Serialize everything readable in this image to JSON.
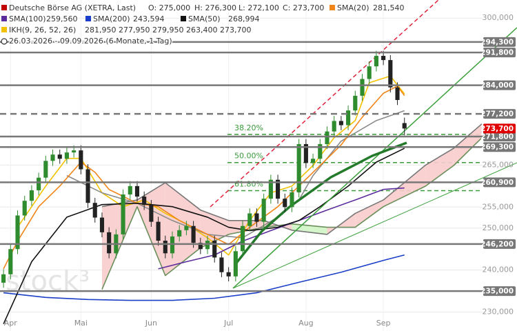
{
  "chart_data": {
    "type": "candlestick",
    "watermark": "stock³",
    "header": {
      "title": "Deutsche Börse AG (XETRA, Last)",
      "color": "#c00000",
      "ohlc": [
        "O: 275,000",
        "H: 276,300",
        "L: 272,100",
        "C: 273,700"
      ],
      "period": "26.03.2026 - 09.09.2026 (6 Monate, 1 Tag)"
    },
    "categories": [
      null,
      "Apr",
      null,
      null,
      null,
      null,
      null,
      null,
      null,
      null,
      null,
      "Mai",
      null,
      null,
      null,
      null,
      null,
      null,
      null,
      null,
      null,
      "Jun",
      null,
      null,
      null,
      null,
      null,
      null,
      null,
      null,
      null,
      null,
      "Jul",
      null,
      null,
      null,
      null,
      null,
      null,
      null,
      null,
      null,
      null,
      "Aug",
      null,
      null,
      null,
      null,
      null,
      null,
      null,
      null,
      null,
      null,
      "Sep",
      null,
      null,
      null
    ],
    "xlim": [
      -0.5,
      68.1
    ],
    "ylim": [
      225500,
      304300
    ],
    "yticks": [
      {
        "value": 300000,
        "label": "300,000"
      },
      {
        "value": 265000,
        "label": "265,000"
      },
      {
        "value": 255000,
        "label": "255,000"
      },
      {
        "value": 250000,
        "label": "250,000"
      },
      {
        "value": 240000,
        "label": "240,000"
      },
      {
        "value": 230000,
        "label": "230,000"
      }
    ],
    "grid": true,
    "up_color": "#2e8b2e",
    "down_color": "#222222",
    "open": [
      237000,
      239000,
      245000,
      253000,
      256500,
      259000,
      262000,
      266000,
      267500,
      266500,
      268000,
      268500,
      264000,
      256000,
      252500,
      249000,
      244000,
      248500,
      258000,
      260000,
      257500,
      255500,
      251500,
      247000,
      244000,
      248000,
      249500,
      250500,
      246500,
      245000,
      247000,
      243000,
      239500,
      238500,
      244500,
      250500,
      253500,
      251500,
      257000,
      261500,
      257000,
      255000,
      258500,
      270000,
      265500,
      266500,
      270000,
      273000,
      275500,
      274500,
      278000,
      281500,
      285500,
      288500,
      291000,
      290000,
      283500,
      275000
    ],
    "high": [
      240200,
      246200,
      254200,
      257700,
      260200,
      263200,
      267200,
      268700,
      268700,
      269200,
      269700,
      269700,
      265200,
      257200,
      253700,
      250200,
      249700,
      259200,
      261200,
      261200,
      258700,
      256700,
      252700,
      248200,
      249200,
      250700,
      251700,
      251700,
      247700,
      248200,
      248200,
      244200,
      240700,
      245700,
      251700,
      254700,
      254700,
      258200,
      262700,
      262700,
      258200,
      259700,
      271200,
      271200,
      267700,
      271200,
      274200,
      276700,
      276700,
      279200,
      282700,
      286700,
      289700,
      292200,
      292200,
      291200,
      284700,
      276300
    ],
    "low": [
      235800,
      237800,
      243800,
      251800,
      255300,
      257800,
      260800,
      264800,
      265300,
      265300,
      266800,
      262800,
      254800,
      251300,
      247800,
      242800,
      242800,
      247300,
      256800,
      256300,
      254300,
      250300,
      245800,
      242800,
      242800,
      246800,
      248300,
      245300,
      243800,
      243800,
      241800,
      238300,
      237300,
      237300,
      243300,
      249300,
      250300,
      250300,
      255800,
      255800,
      253800,
      253800,
      257300,
      264300,
      264300,
      265300,
      268800,
      271800,
      273300,
      273300,
      276800,
      280300,
      284300,
      287300,
      288800,
      282300,
      279300,
      272100
    ],
    "close": [
      239000,
      245000,
      253000,
      256500,
      259000,
      262000,
      266000,
      267500,
      266500,
      268000,
      268500,
      264000,
      256000,
      252500,
      249000,
      244000,
      248500,
      258000,
      260000,
      257500,
      255500,
      251500,
      247000,
      244000,
      248000,
      249500,
      250500,
      246500,
      245000,
      247000,
      243000,
      239500,
      238500,
      244500,
      250500,
      253500,
      251500,
      257000,
      261500,
      257000,
      255000,
      258500,
      270000,
      265500,
      266500,
      270000,
      273000,
      275500,
      274500,
      278000,
      281500,
      285500,
      288500,
      291000,
      290000,
      283500,
      280500,
      273700
    ],
    "series": [
      {
        "name": "SMA(20)",
        "color": "#f0861a",
        "last_label": "281,540",
        "x": [
          0,
          2,
          5,
          8,
          11,
          13,
          15,
          19,
          22,
          25,
          29,
          32,
          35,
          39,
          42,
          45,
          48,
          51,
          54,
          56,
          57
        ],
        "values": [
          240300,
          246900,
          255100,
          260000,
          265700,
          263300,
          259200,
          255900,
          255100,
          251800,
          248500,
          246100,
          250200,
          255100,
          260000,
          264900,
          269800,
          276400,
          282100,
          283800,
          281540
        ]
      },
      {
        "name": "SMA(100)",
        "color": "#5b2c9c",
        "last_label": "259,560",
        "x": [
          22,
          26,
          30,
          34,
          38,
          42,
          46,
          50,
          54,
          57
        ],
        "values": [
          240300,
          242000,
          243600,
          246900,
          249400,
          251800,
          254300,
          256700,
          259200,
          259560
        ]
      },
      {
        "name": "SMA(200)",
        "color": "#1a3ec8",
        "last_label": "243,594",
        "x": [
          0,
          6,
          12,
          18,
          24,
          30,
          36,
          42,
          48,
          54,
          57
        ],
        "values": [
          234600,
          233500,
          233000,
          232800,
          232800,
          233300,
          234600,
          237100,
          239500,
          242300,
          243594
        ]
      },
      {
        "name": "SMA(50)",
        "color": "#111111",
        "last_label": "268,994",
        "x": [
          0,
          4,
          9,
          14,
          19,
          24,
          29,
          32,
          35,
          39,
          42,
          45,
          49,
          53,
          57
        ],
        "values": [
          227200,
          242000,
          252600,
          255600,
          255900,
          255100,
          252600,
          250200,
          249400,
          250200,
          251800,
          255100,
          260000,
          265700,
          268994
        ]
      }
    ],
    "ikh": {
      "name": "IKH(9, 26, 52, 26)",
      "color": "#f2c200",
      "value_labels": [
        {
          "label": "281,950",
          "color": "#e0b000"
        },
        {
          "label": "277,950",
          "color": "#777777"
        },
        {
          "label": "279,950",
          "color": "#7a4ab0"
        },
        {
          "label": "263,400",
          "color": "#777777"
        },
        {
          "label": "273,700",
          "color": "#e0a000"
        }
      ],
      "lines": [
        {
          "color": "#f2c200",
          "x": [
            2,
            6,
            9,
            11,
            14,
            17,
            20,
            23,
            26,
            29,
            32,
            35,
            38,
            41,
            44,
            47,
            50,
            52,
            55,
            57
          ],
          "values": [
            250200,
            260000,
            266600,
            266600,
            258400,
            255100,
            256700,
            253500,
            251000,
            247700,
            243600,
            251800,
            258400,
            260000,
            264900,
            271500,
            275600,
            284600,
            286200,
            281950
          ]
        },
        {
          "color": "#8a8a8a",
          "x": [
            9,
            14,
            19,
            24,
            29,
            34,
            39,
            42,
            44,
            48,
            53,
            57
          ],
          "values": [
            262500,
            258400,
            255900,
            251800,
            248500,
            247700,
            252600,
            256700,
            262500,
            270700,
            275600,
            277950
          ]
        }
      ],
      "cloud": {
        "x": [
          14,
          19,
          23,
          28,
          32,
          37,
          41,
          46,
          50,
          54,
          60,
          64,
          68
        ],
        "span_a": [
          235400,
          255100,
          238700,
          245300,
          248500,
          250200,
          251000,
          250200,
          250200,
          255100,
          260000,
          264900,
          271500
        ],
        "span_b": [
          255100,
          256700,
          260800,
          254300,
          251800,
          251800,
          249500,
          248500,
          253500,
          256700,
          265000,
          269000,
          274800
        ],
        "color_a": "#6a8f5a",
        "color_b": "#777777",
        "fill_up": "#cff5c4",
        "fill_down": "#f8cccc"
      }
    },
    "levels": [
      {
        "value": 294300,
        "label": "294,300"
      },
      {
        "value": 291800,
        "label": "291,800"
      },
      {
        "value": 284000,
        "label": "284,000"
      },
      {
        "value": 277200,
        "label": "277,200",
        "dashed": true
      },
      {
        "value": 271800,
        "label": "271,800"
      },
      {
        "value": 269300,
        "label": "269,300"
      },
      {
        "value": 260900,
        "label": "260,900"
      },
      {
        "value": 246200,
        "label": "246,200"
      },
      {
        "value": 235000,
        "label": "235,000"
      }
    ],
    "level_color": "#777777",
    "current": {
      "value": 273700,
      "label": "273,700",
      "color": "#e00000"
    },
    "fib_color": "#3a9a3a",
    "fib_levels": [
      {
        "value": 272300,
        "label": "38.20%"
      },
      {
        "value": 265600,
        "label": "50.00%"
      },
      {
        "value": 258900,
        "label": "61.80%"
      }
    ]
  }
}
